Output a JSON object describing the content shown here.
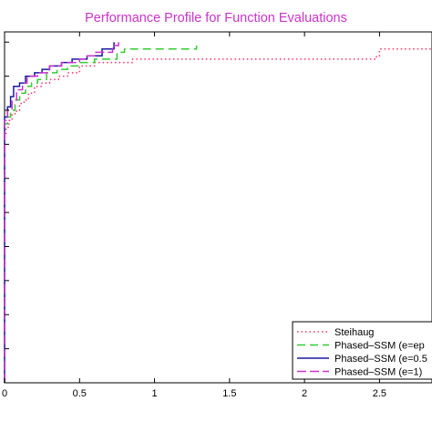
{
  "chart_data": {
    "type": "line",
    "title": "Performance Profile for Function Evaluations",
    "title_color": "#cc33cc",
    "xlabel": "",
    "ylabel": "",
    "xlim": [
      0,
      2.85
    ],
    "ylim": [
      0,
      1.03
    ],
    "x_ticks": [
      0,
      0.5,
      1,
      1.5,
      2,
      2.5
    ],
    "x_tick_labels": [
      "0",
      "0.5",
      "1",
      "1.5",
      "2",
      "2.5"
    ],
    "y_ticks": [
      0,
      0.1,
      0.2,
      0.3,
      0.4,
      0.5,
      0.6,
      0.7,
      0.8,
      0.9,
      1.0
    ],
    "grid": false,
    "legend_position": "bottom-right",
    "series": [
      {
        "name": "Steihaug",
        "color": "#ff3366",
        "dash": "dotted",
        "x": [
          0,
          0.01,
          0.03,
          0.05,
          0.08,
          0.1,
          0.13,
          0.16,
          0.2,
          0.25,
          0.3,
          0.36,
          0.42,
          0.5,
          0.6,
          0.72,
          0.85,
          2.48,
          2.5,
          2.85
        ],
        "y": [
          0.73,
          0.75,
          0.77,
          0.79,
          0.8,
          0.82,
          0.83,
          0.85,
          0.87,
          0.88,
          0.89,
          0.9,
          0.91,
          0.93,
          0.94,
          0.94,
          0.95,
          0.96,
          0.98,
          0.98
        ]
      },
      {
        "name": "Phased–SSM (e=ep",
        "color": "#33cc33",
        "dash": "dashed",
        "x": [
          0,
          0.02,
          0.04,
          0.07,
          0.1,
          0.14,
          0.18,
          0.22,
          0.28,
          0.35,
          0.42,
          0.5,
          0.6,
          0.75,
          0.8,
          1.28
        ],
        "y": [
          0.76,
          0.78,
          0.8,
          0.83,
          0.85,
          0.87,
          0.88,
          0.89,
          0.91,
          0.92,
          0.93,
          0.94,
          0.95,
          0.97,
          0.98,
          0.99
        ]
      },
      {
        "name": "Phased–SSM (e=0.5",
        "color": "#1a1aa0",
        "dash": "solid",
        "x": [
          0,
          0.02,
          0.04,
          0.06,
          0.1,
          0.14,
          0.2,
          0.25,
          0.3,
          0.38,
          0.45,
          0.55,
          0.65,
          0.72,
          0.73
        ],
        "y": [
          0.78,
          0.81,
          0.84,
          0.87,
          0.88,
          0.9,
          0.91,
          0.92,
          0.93,
          0.94,
          0.95,
          0.96,
          0.98,
          0.98,
          1.0
        ]
      },
      {
        "name": "Phased–SSM (e=1)",
        "color": "#cc33cc",
        "dash": "dashdot",
        "x": [
          0,
          0.02,
          0.05,
          0.08,
          0.12,
          0.15,
          0.22,
          0.3,
          0.38,
          0.45,
          0.5,
          0.55,
          0.6,
          0.66,
          0.72,
          0.76
        ],
        "y": [
          0.77,
          0.8,
          0.83,
          0.86,
          0.88,
          0.9,
          0.91,
          0.93,
          0.94,
          0.94,
          0.95,
          0.96,
          0.97,
          0.97,
          0.99,
          1.0
        ]
      }
    ]
  }
}
